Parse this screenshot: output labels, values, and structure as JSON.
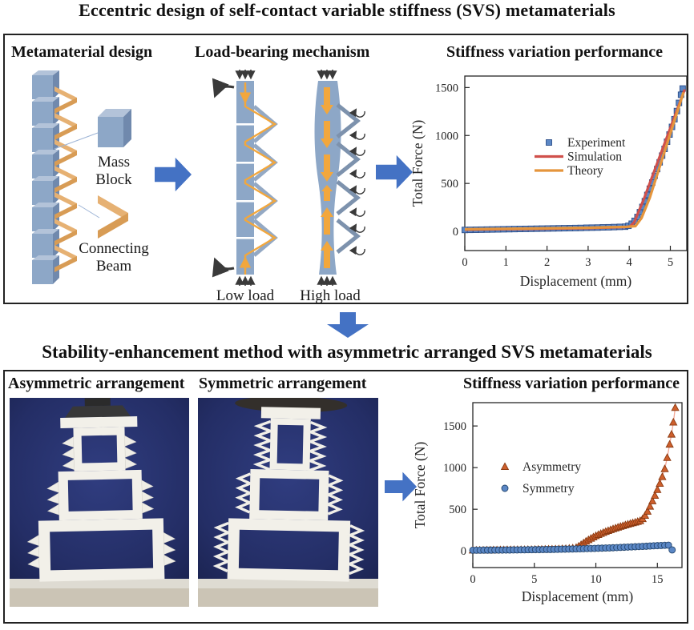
{
  "main": {
    "title_top": "Eccentric design of self-contact variable stiffness (SVS) metamaterials",
    "title_bottom": "Stability-enhancement method with asymmetric arranged SVS metamaterials"
  },
  "panel_top": {
    "headers": {
      "design": "Metamaterial design",
      "mechanism": "Load-bearing mechanism",
      "performance": "Stiffness variation performance"
    },
    "design_labels": {
      "mass_line1": "Mass",
      "mass_line2": "Block",
      "beam_line1": "Connecting",
      "beam_line2": "Beam"
    },
    "mechanism_labels": {
      "low": "Low load",
      "high": "High load"
    }
  },
  "panel_bottom": {
    "headers": {
      "asymmetric": "Asymmetric arrangement",
      "symmetric": "Symmetric arrangement",
      "performance": "Stiffness variation performance"
    }
  },
  "colors": {
    "flow_arrow_blue": "#4472c4",
    "mass_block_blue": "#8da7c7",
    "connecting_beam_orange": "#e6b173",
    "experiment_blue": "#5b87c5",
    "simulation_red": "#d0504b",
    "theory_orange": "#e5953c",
    "asymmetry_orange": "#cd5f2c",
    "symmetry_blue": "#5b87c5",
    "photo_background_navy": "#242e66",
    "structure_white": "#f2f0e9"
  },
  "chart_data": [
    {
      "type": "scatter",
      "title": "Stiffness variation performance",
      "xlabel": "Displacement (mm)",
      "ylabel": "Total Force (N)",
      "xlim": [
        0,
        5.4
      ],
      "ylim": [
        -200,
        1620
      ],
      "xticks": [
        0,
        1,
        2,
        3,
        4,
        5
      ],
      "yticks": [
        0,
        500,
        1000,
        1500
      ],
      "grid": false,
      "legend_position": "center-right",
      "series": [
        {
          "name": "Experiment",
          "type": "scatter",
          "marker": "square",
          "color": "#5b87c5",
          "edge": "#2e4f8a",
          "points": [
            [
              0,
              15
            ],
            [
              0.13,
              16
            ],
            [
              0.27,
              17
            ],
            [
              0.4,
              18
            ],
            [
              0.54,
              19
            ],
            [
              0.67,
              20
            ],
            [
              0.81,
              21
            ],
            [
              0.94,
              22
            ],
            [
              1.08,
              23
            ],
            [
              1.21,
              24
            ],
            [
              1.34,
              25
            ],
            [
              1.48,
              26
            ],
            [
              1.61,
              27
            ],
            [
              1.75,
              28
            ],
            [
              1.88,
              29
            ],
            [
              2.02,
              30
            ],
            [
              2.15,
              31
            ],
            [
              2.29,
              32
            ],
            [
              2.42,
              33
            ],
            [
              2.56,
              34
            ],
            [
              2.69,
              35
            ],
            [
              2.82,
              36
            ],
            [
              2.96,
              38
            ],
            [
              3.09,
              39
            ],
            [
              3.23,
              40
            ],
            [
              3.36,
              42
            ],
            [
              3.5,
              43
            ],
            [
              3.63,
              45
            ],
            [
              3.77,
              47
            ],
            [
              3.9,
              49
            ],
            [
              3.98,
              58
            ],
            [
              4.06,
              80
            ],
            [
              4.13,
              110
            ],
            [
              4.2,
              150
            ],
            [
              4.26,
              200
            ],
            [
              4.32,
              255
            ],
            [
              4.38,
              315
            ],
            [
              4.44,
              380
            ],
            [
              4.5,
              445
            ],
            [
              4.56,
              510
            ],
            [
              4.62,
              580
            ],
            [
              4.68,
              650
            ],
            [
              4.74,
              720
            ],
            [
              4.8,
              790
            ],
            [
              4.86,
              860
            ],
            [
              4.92,
              935
            ],
            [
              4.98,
              1010
            ],
            [
              5.04,
              1090
            ],
            [
              5.1,
              1170
            ],
            [
              5.16,
              1255
            ],
            [
              5.21,
              1340
            ],
            [
              5.26,
              1425
            ],
            [
              5.3,
              1490
            ]
          ]
        },
        {
          "name": "Simulation",
          "type": "line",
          "color": "#d0504b",
          "points": [
            [
              0,
              18
            ],
            [
              3,
              34
            ],
            [
              3.9,
              45
            ],
            [
              4.02,
              52
            ],
            [
              4.12,
              95
            ],
            [
              4.35,
              330
            ],
            [
              5.35,
              1480
            ]
          ]
        },
        {
          "name": "Theory",
          "type": "line",
          "color": "#e5953c",
          "points": [
            [
              0,
              22
            ],
            [
              3,
              38
            ],
            [
              3.95,
              48
            ],
            [
              4.15,
              55
            ],
            [
              4.3,
              140
            ],
            [
              4.5,
              350
            ],
            [
              5.32,
              1450
            ]
          ]
        }
      ]
    },
    {
      "type": "scatter",
      "title": "Stiffness variation performance",
      "xlabel": "Displacement (mm)",
      "ylabel": "Total Force (N)",
      "xlim": [
        0,
        17
      ],
      "ylim": [
        -200,
        1780
      ],
      "xticks": [
        0,
        5,
        10,
        15
      ],
      "yticks": [
        0,
        500,
        1000,
        1500
      ],
      "grid": false,
      "legend_position": "center-left",
      "series": [
        {
          "name": "Asymmetry",
          "type": "scatter",
          "marker": "triangle",
          "color": "#cd5f2c",
          "edge": "#8a3a12",
          "connect": "#f4a896",
          "points": [
            [
              0,
              8
            ],
            [
              0.28,
              8
            ],
            [
              0.56,
              9
            ],
            [
              0.84,
              9
            ],
            [
              1.12,
              10
            ],
            [
              1.4,
              10
            ],
            [
              1.68,
              11
            ],
            [
              1.96,
              11
            ],
            [
              2.24,
              12
            ],
            [
              2.52,
              12
            ],
            [
              2.8,
              13
            ],
            [
              3.08,
              13
            ],
            [
              3.36,
              14
            ],
            [
              3.64,
              14
            ],
            [
              3.92,
              15
            ],
            [
              4.2,
              15
            ],
            [
              4.48,
              16
            ],
            [
              4.76,
              16
            ],
            [
              5.04,
              17
            ],
            [
              5.32,
              18
            ],
            [
              5.6,
              18
            ],
            [
              5.88,
              19
            ],
            [
              6.16,
              20
            ],
            [
              6.44,
              21
            ],
            [
              6.72,
              22
            ],
            [
              7,
              23
            ],
            [
              7.28,
              25
            ],
            [
              7.56,
              27
            ],
            [
              7.84,
              30
            ],
            [
              8.12,
              34
            ],
            [
              8.4,
              40
            ],
            [
              8.6,
              55
            ],
            [
              8.8,
              75
            ],
            [
              9,
              95
            ],
            [
              9.2,
              115
            ],
            [
              9.4,
              133
            ],
            [
              9.6,
              150
            ],
            [
              9.8,
              166
            ],
            [
              10,
              181
            ],
            [
              10.2,
              195
            ],
            [
              10.4,
              208
            ],
            [
              10.6,
              220
            ],
            [
              10.8,
              232
            ],
            [
              11,
              243
            ],
            [
              11.2,
              254
            ],
            [
              11.4,
              264
            ],
            [
              11.6,
              274
            ],
            [
              11.8,
              284
            ],
            [
              12,
              293
            ],
            [
              12.2,
              302
            ],
            [
              12.4,
              311
            ],
            [
              12.6,
              320
            ],
            [
              12.8,
              328
            ],
            [
              13,
              336
            ],
            [
              13.2,
              344
            ],
            [
              13.4,
              352
            ],
            [
              13.6,
              362
            ],
            [
              13.8,
              385
            ],
            [
              14,
              425
            ],
            [
              14.2,
              475
            ],
            [
              14.4,
              535
            ],
            [
              14.6,
              600
            ],
            [
              14.8,
              665
            ],
            [
              15,
              735
            ],
            [
              15.2,
              810
            ],
            [
              15.4,
              890
            ],
            [
              15.6,
              985
            ],
            [
              15.8,
              1120
            ],
            [
              16,
              1280
            ],
            [
              16.15,
              1400
            ],
            [
              16.3,
              1545
            ],
            [
              16.45,
              1720
            ]
          ]
        },
        {
          "name": "Symmetry",
          "type": "scatter",
          "marker": "circle",
          "color": "#5b87c5",
          "edge": "#24466e",
          "points": [
            [
              0,
              8
            ],
            [
              0.3,
              8
            ],
            [
              0.6,
              8
            ],
            [
              0.9,
              9
            ],
            [
              1.2,
              9
            ],
            [
              1.5,
              9
            ],
            [
              1.8,
              10
            ],
            [
              2.1,
              10
            ],
            [
              2.4,
              10
            ],
            [
              2.7,
              11
            ],
            [
              3,
              11
            ],
            [
              3.3,
              12
            ],
            [
              3.6,
              12
            ],
            [
              3.9,
              13
            ],
            [
              4.2,
              13
            ],
            [
              4.5,
              14
            ],
            [
              4.8,
              14
            ],
            [
              5.1,
              15
            ],
            [
              5.4,
              15
            ],
            [
              5.7,
              16
            ],
            [
              6,
              17
            ],
            [
              6.3,
              17
            ],
            [
              6.6,
              18
            ],
            [
              6.9,
              19
            ],
            [
              7.2,
              20
            ],
            [
              7.5,
              21
            ],
            [
              7.8,
              22
            ],
            [
              8.1,
              23
            ],
            [
              8.4,
              24
            ],
            [
              8.7,
              25
            ],
            [
              9,
              26
            ],
            [
              9.3,
              28
            ],
            [
              9.6,
              29
            ],
            [
              9.9,
              30
            ],
            [
              10.2,
              32
            ],
            [
              10.5,
              33
            ],
            [
              10.8,
              35
            ],
            [
              11.1,
              36
            ],
            [
              11.4,
              38
            ],
            [
              11.7,
              40
            ],
            [
              12,
              42
            ],
            [
              12.3,
              44
            ],
            [
              12.6,
              46
            ],
            [
              12.9,
              48
            ],
            [
              13.2,
              50
            ],
            [
              13.5,
              52
            ],
            [
              13.8,
              54
            ],
            [
              14.1,
              56
            ],
            [
              14.4,
              59
            ],
            [
              14.7,
              61
            ],
            [
              15,
              63
            ],
            [
              15.3,
              65
            ],
            [
              15.6,
              67
            ],
            [
              15.9,
              69
            ],
            [
              16.2,
              12
            ]
          ]
        }
      ]
    }
  ]
}
